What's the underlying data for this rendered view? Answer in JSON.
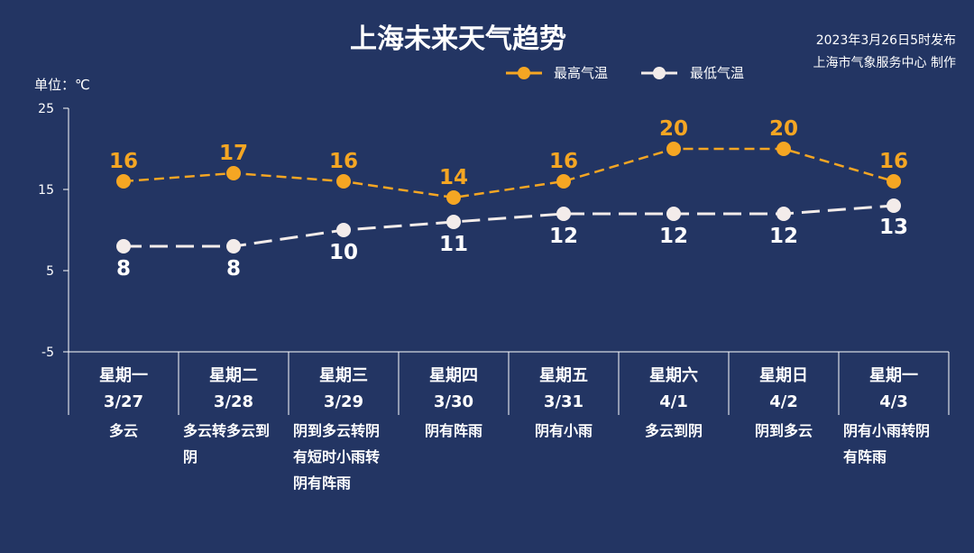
{
  "chart_data": {
    "type": "line",
    "title": "上海未来天气趋势",
    "publish_time": "2023年3月26日5时发布",
    "producer": "上海市气象服务中心 制作",
    "unit_label": "单位：℃",
    "ylim": [
      -5,
      25
    ],
    "yticks": [
      25,
      15,
      5,
      -5
    ],
    "legend_position": "top-right",
    "grid": false,
    "categories": [
      {
        "day": "星期一",
        "date": "3/27",
        "weather": [
          "多云"
        ]
      },
      {
        "day": "星期二",
        "date": "3/28",
        "weather": [
          "多云转多云到",
          "阴"
        ]
      },
      {
        "day": "星期三",
        "date": "3/29",
        "weather": [
          "阴到多云转阴",
          "有短时小雨转",
          "阴有阵雨"
        ]
      },
      {
        "day": "星期四",
        "date": "3/30",
        "weather": [
          "阴有阵雨"
        ]
      },
      {
        "day": "星期五",
        "date": "3/31",
        "weather": [
          "阴有小雨"
        ]
      },
      {
        "day": "星期六",
        "date": "4/1",
        "weather": [
          "多云到阴"
        ]
      },
      {
        "day": "星期日",
        "date": "4/2",
        "weather": [
          "阴到多云"
        ]
      },
      {
        "day": "星期一",
        "date": "4/3",
        "weather": [
          "阴有小雨转阴",
          "有阵雨"
        ]
      }
    ],
    "series": [
      {
        "name": "最高气温",
        "color": "#f5a623",
        "values": [
          16,
          17,
          16,
          14,
          16,
          20,
          20,
          16
        ]
      },
      {
        "name": "最低气温",
        "color": "#f3ecea",
        "values": [
          8,
          8,
          10,
          11,
          12,
          12,
          12,
          13
        ]
      }
    ]
  }
}
